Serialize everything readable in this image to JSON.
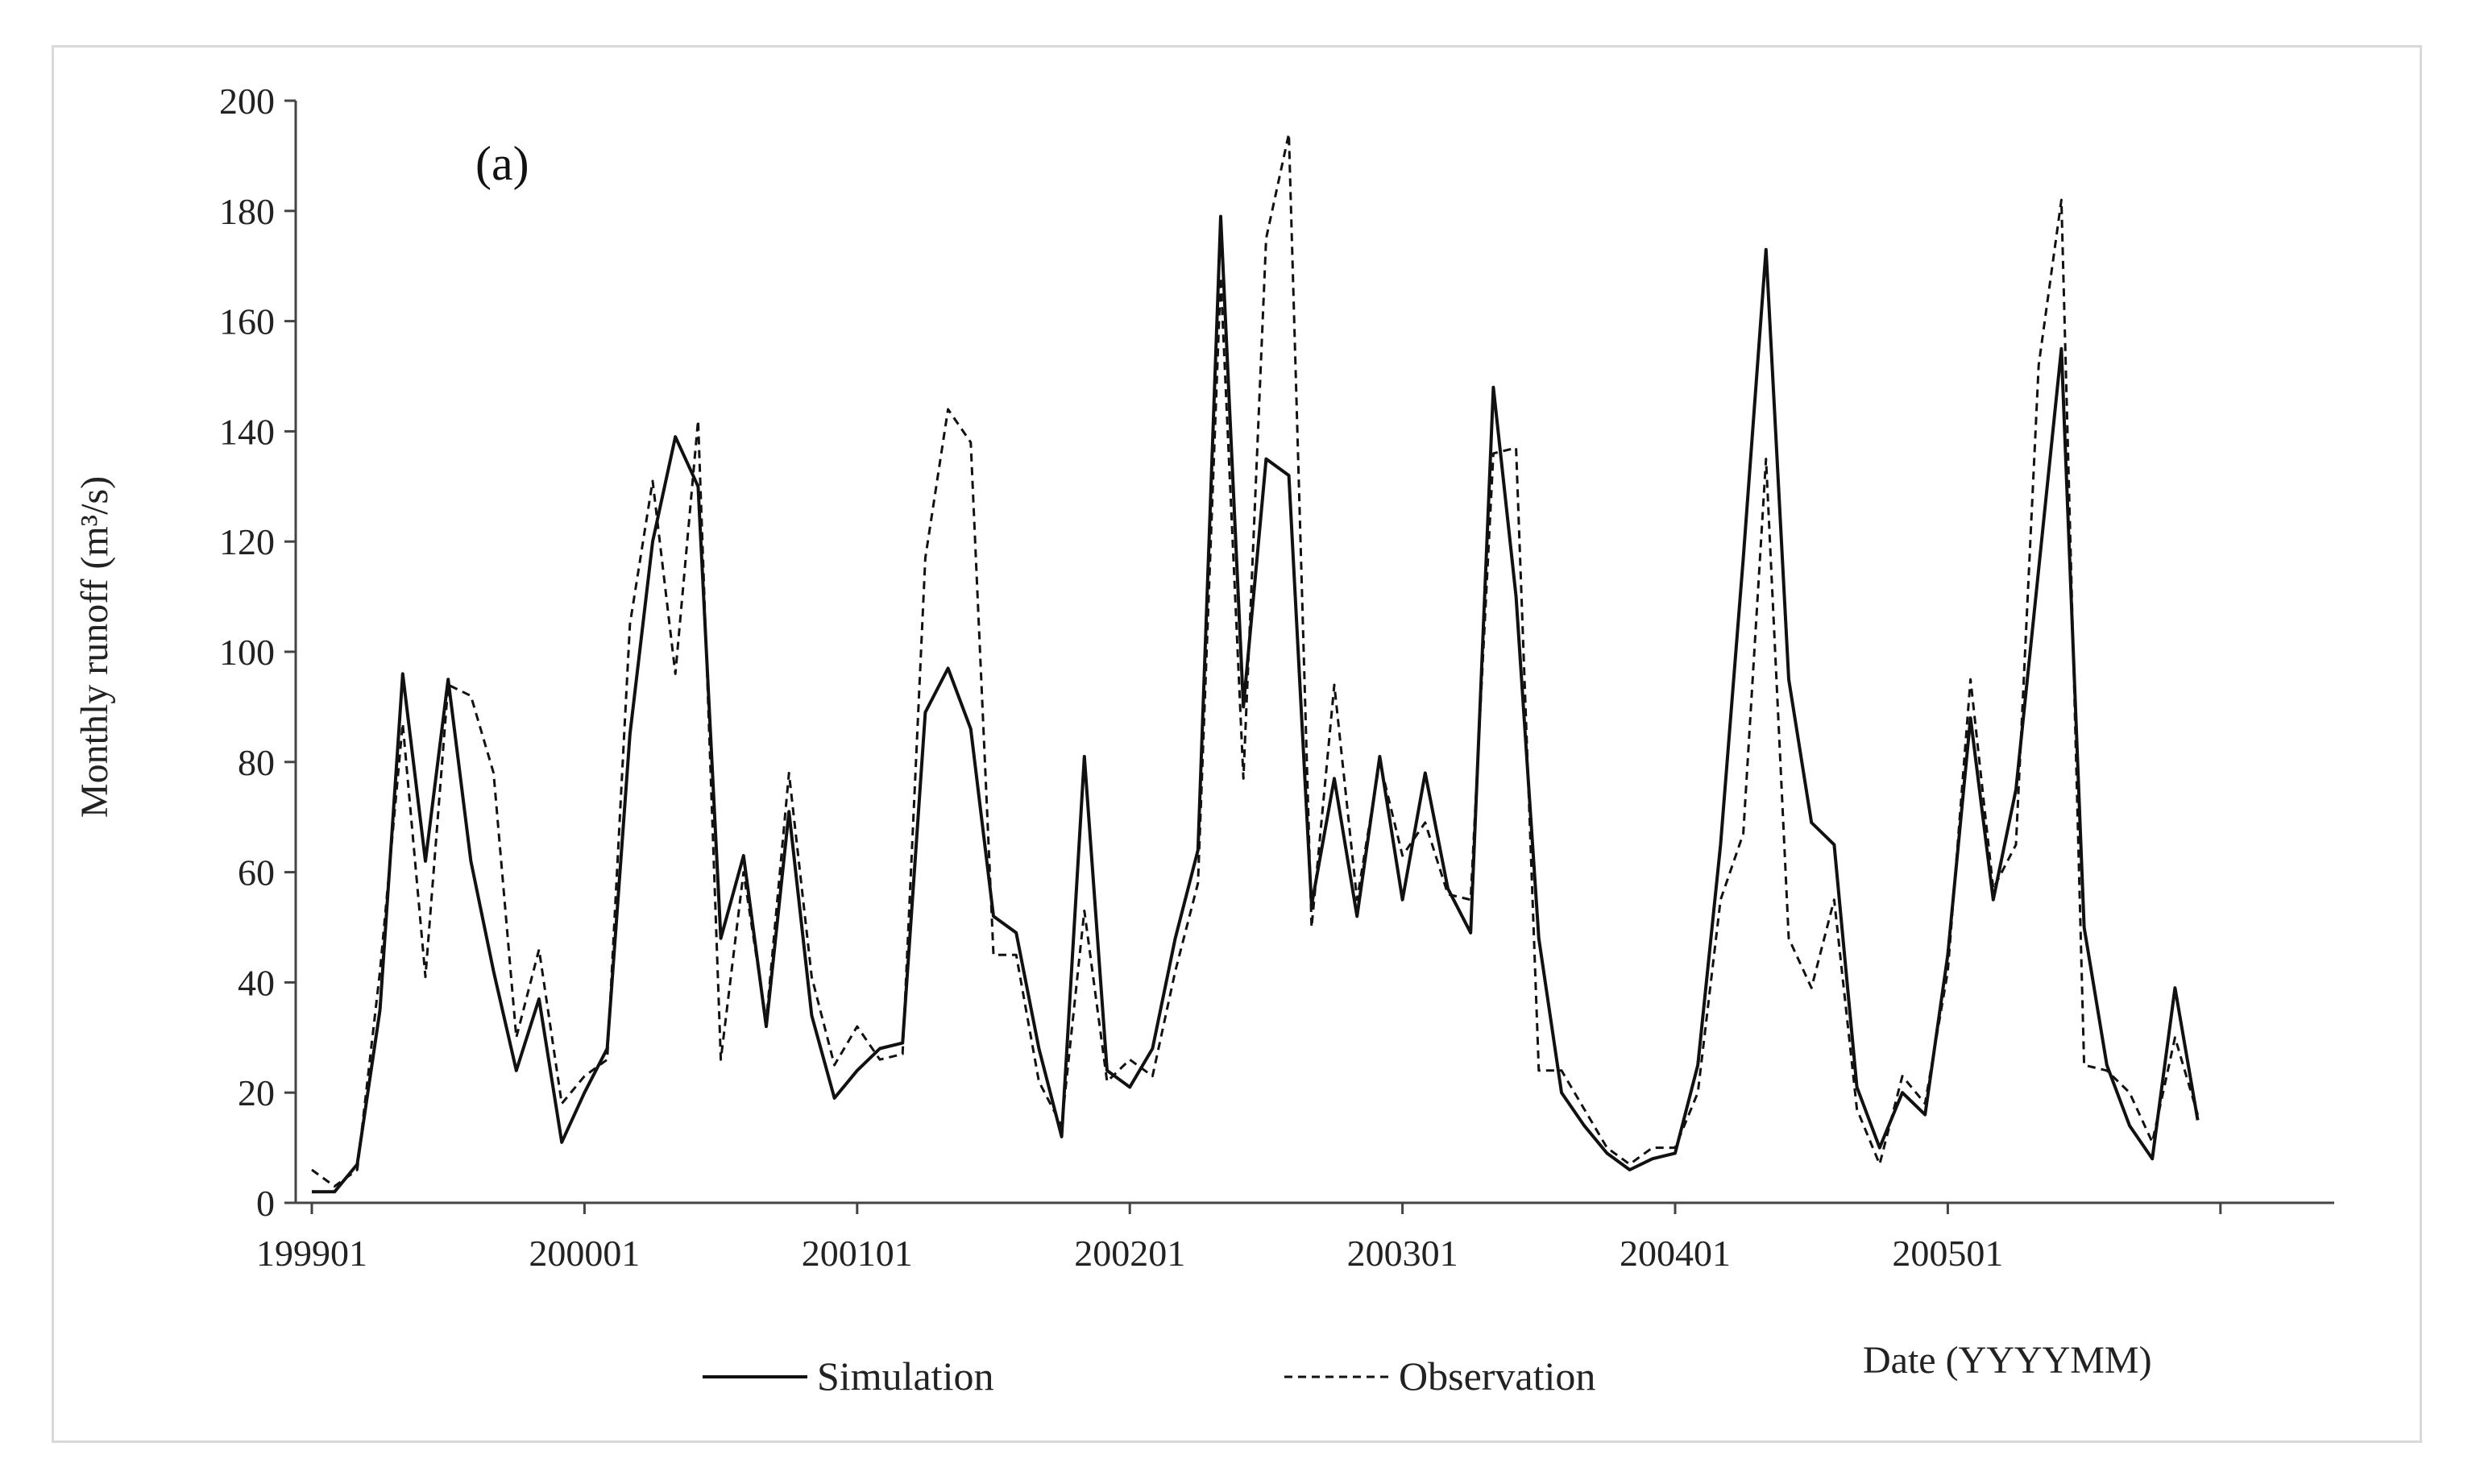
{
  "chart_data": {
    "type": "line",
    "panel_label": "(a)",
    "ylabel": "Monthly runoff (m³/s)",
    "xlabel": "Date (YYYYMM)",
    "ylim": [
      0,
      200
    ],
    "yticks": [
      0,
      20,
      40,
      60,
      80,
      100,
      120,
      140,
      160,
      180,
      200
    ],
    "xtick_labels": [
      "199901",
      "200001",
      "200101",
      "200201",
      "200301",
      "200401",
      "200501"
    ],
    "xtick_months_index": [
      0,
      12,
      24,
      36,
      48,
      60,
      72
    ],
    "x_month_count": 84,
    "series": [
      {
        "name": "Simulation",
        "style": "solid",
        "values": [
          2,
          2,
          7,
          35,
          96,
          62,
          95,
          62,
          42,
          24,
          37,
          11,
          20,
          28,
          85,
          120,
          139,
          130,
          48,
          63,
          32,
          71,
          34,
          19,
          24,
          28,
          29,
          89,
          97,
          86,
          52,
          49,
          28,
          12,
          81,
          24,
          21,
          28,
          48,
          64,
          179,
          90,
          135,
          132,
          54,
          77,
          52,
          81,
          55,
          78,
          57,
          49,
          148,
          110,
          48,
          20,
          14,
          9,
          6,
          8,
          9,
          25,
          65,
          117,
          173,
          95,
          69,
          65,
          21,
          10,
          20,
          16,
          45,
          88,
          55,
          75,
          115,
          155,
          50,
          25,
          14,
          8,
          39,
          15
        ]
      },
      {
        "name": "Observation",
        "style": "dashed",
        "values": [
          6,
          3,
          6,
          42,
          87,
          41,
          94,
          92,
          78,
          30,
          46,
          18,
          23,
          26,
          105,
          131,
          96,
          142,
          26,
          60,
          33,
          78,
          41,
          25,
          32,
          26,
          27,
          117,
          144,
          138,
          45,
          45,
          22,
          14,
          53,
          22,
          26,
          23,
          42,
          58,
          168,
          77,
          175,
          194,
          50,
          94,
          55,
          80,
          63,
          69,
          56,
          55,
          136,
          137,
          24,
          24,
          17,
          10,
          7,
          10,
          10,
          20,
          55,
          67,
          135,
          48,
          39,
          55,
          17,
          7,
          23,
          18,
          42,
          95,
          57,
          65,
          152,
          182,
          25,
          24,
          20,
          11,
          30,
          16
        ]
      }
    ],
    "legend": {
      "placement": "bottom",
      "items": [
        "Simulation",
        "Observation"
      ]
    }
  },
  "colors": {
    "line": "#111111",
    "axis": "#444444",
    "frame": "#d9d9d9"
  }
}
